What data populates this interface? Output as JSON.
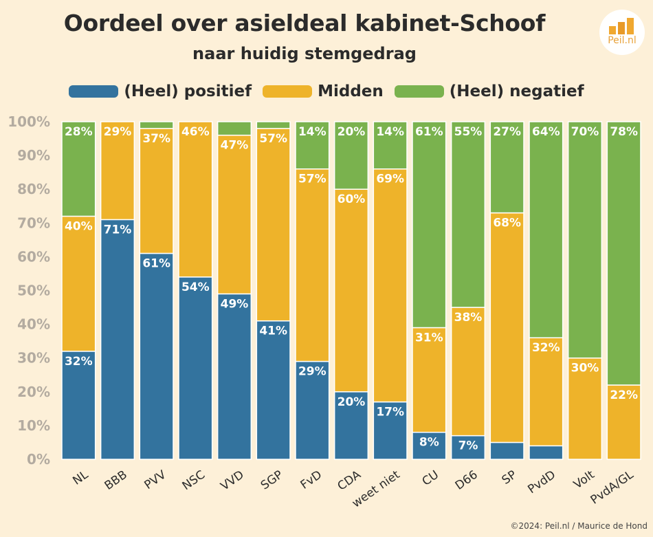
{
  "title": "Oordeel over asieldeal kabinet-Schoof",
  "subtitle": "naar huidig stemgedrag",
  "logo_text": "Peil.nl",
  "footer": "©2024: Peil.nl / Maurice de Hond",
  "colors": {
    "positief": "#33739e",
    "midden": "#eeb32a",
    "negatief": "#7ab24e",
    "background": "#fdf0d8",
    "axis_text": "#b3aba0"
  },
  "chart_data": {
    "type": "bar",
    "stacked": true,
    "categories": [
      "NL",
      "BBB",
      "PVV",
      "NSC",
      "VVD",
      "SGP",
      "FvD",
      "CDA",
      "weet niet",
      "CU",
      "D66",
      "SP",
      "PvdD",
      "Volt",
      "PvdA/GL"
    ],
    "series": [
      {
        "name": "(Heel) positief",
        "color": "#33739e",
        "values": [
          32,
          71,
          61,
          54,
          49,
          41,
          29,
          20,
          17,
          8,
          7,
          5,
          4,
          0,
          0
        ]
      },
      {
        "name": "Midden",
        "color": "#eeb32a",
        "values": [
          40,
          29,
          37,
          46,
          47,
          57,
          57,
          60,
          69,
          31,
          38,
          68,
          32,
          30,
          22
        ]
      },
      {
        "name": "(Heel) negatief",
        "color": "#7ab24e",
        "values": [
          28,
          0,
          2,
          0,
          4,
          2,
          14,
          20,
          14,
          61,
          55,
          27,
          64,
          70,
          78
        ]
      }
    ],
    "labels": [
      [
        "32%",
        "71%",
        "61%",
        "54%",
        "49%",
        "41%",
        "29%",
        "20%",
        "17%",
        "8%",
        "7%",
        "",
        "",
        "",
        ""
      ],
      [
        "40%",
        "29%",
        "37%",
        "46%",
        "47%",
        "57%",
        "57%",
        "60%",
        "69%",
        "31%",
        "38%",
        "68%",
        "32%",
        "30%",
        "22%"
      ],
      [
        "28%",
        "",
        "",
        "",
        "",
        "",
        "14%",
        "20%",
        "14%",
        "61%",
        "55%",
        "27%",
        "64%",
        "70%",
        "78%"
      ]
    ],
    "yticks": [
      "0%",
      "10%",
      "20%",
      "30%",
      "40%",
      "50%",
      "60%",
      "70%",
      "80%",
      "90%",
      "100%"
    ],
    "ylim": [
      0,
      100
    ],
    "legend_position": "top"
  }
}
